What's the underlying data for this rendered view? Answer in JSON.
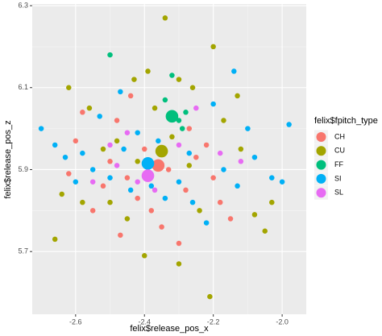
{
  "chart_data": {
    "type": "scatter",
    "x_label": "felix$release_pos_x",
    "y_label": "felix$release_pos_z",
    "legend_title": "felix$fpitch_type",
    "xlim": [
      -2.726,
      -1.93
    ],
    "ylim": [
      5.547,
      6.304
    ],
    "xticks": [
      -2.6,
      -2.4,
      -2.2,
      {
        "value": -2,
        "label": "-2.0"
      }
    ],
    "yticks": [
      5.7,
      5.9,
      6.1,
      6.3
    ],
    "grid": true,
    "legend": "right",
    "series": [
      {
        "name": "CH",
        "color": "#F8766D",
        "x": [
          -2.58,
          -2.6,
          -2.5,
          -2.45,
          -2.42,
          -2.38,
          -2.35,
          -2.3,
          -2.28,
          -2.25,
          -2.2,
          -2.18,
          -2.15,
          -2.52,
          -2.55,
          -2.48,
          -2.44,
          -2.4,
          -2.33,
          -2.27,
          -2.22,
          -2.62,
          -2.47,
          -2.36
        ],
        "values": [
          6.04,
          5.97,
          5.92,
          5.88,
          5.83,
          5.8,
          5.76,
          5.72,
          5.85,
          5.93,
          5.88,
          5.82,
          5.78,
          5.86,
          5.8,
          6.02,
          6.08,
          5.95,
          5.9,
          6.0,
          5.96,
          5.89,
          5.74,
          5.91
        ],
        "sizes": [
          2.5,
          2.5,
          2.5,
          2.5,
          2.5,
          2.5,
          2.5,
          2.5,
          2.5,
          2.5,
          2.5,
          2.5,
          2.5,
          2.5,
          2.5,
          2.5,
          2.5,
          2.5,
          2.5,
          2.5,
          2.5,
          2.5,
          2.5,
          6
        ]
      },
      {
        "name": "CU",
        "color": "#A3A500",
        "x": [
          -2.66,
          -2.62,
          -2.56,
          -2.52,
          -2.48,
          -2.43,
          -2.39,
          -2.34,
          -2.3,
          -2.26,
          -2.2,
          -2.17,
          -2.12,
          -2.08,
          -2.05,
          -2.03,
          -2.21,
          -2.3,
          -2.4,
          -2.45,
          -2.5,
          -2.58,
          -2.64,
          -2.27,
          -2.32,
          -2.37,
          -2.42,
          -2.13,
          -2.24,
          -2.35
        ],
        "values": [
          5.73,
          6.1,
          6.05,
          5.95,
          5.97,
          6.12,
          6.14,
          6.27,
          6.12,
          6.1,
          6.2,
          6.02,
          5.95,
          5.79,
          5.75,
          5.82,
          5.59,
          5.67,
          5.69,
          5.78,
          5.82,
          5.82,
          5.84,
          5.91,
          5.98,
          6.05,
          5.92,
          6.08,
          5.8,
          5.945
        ],
        "sizes": [
          2.5,
          2.5,
          2.5,
          2.5,
          2.5,
          2.5,
          2.5,
          2.5,
          2.5,
          2.5,
          2.5,
          2.5,
          2.5,
          2.5,
          2.5,
          2.5,
          2.5,
          2.5,
          2.5,
          2.5,
          2.5,
          2.5,
          2.5,
          2.5,
          2.5,
          2.5,
          2.5,
          2.5,
          2.5,
          6
        ]
      },
      {
        "name": "FF",
        "color": "#00BF7D",
        "x": [
          -2.32,
          -2.29,
          -2.34,
          -2.5,
          -2.28,
          -2.3,
          -2.32
        ],
        "values": [
          6.13,
          6.0,
          6.07,
          6.18,
          6.04,
          6.02,
          6.03
        ],
        "sizes": [
          2.5,
          2.5,
          2.5,
          2.5,
          2.5,
          2.5,
          6
        ]
      },
      {
        "name": "SI",
        "color": "#00B0F6",
        "x": [
          -2.7,
          -2.66,
          -2.63,
          -2.6,
          -2.55,
          -2.5,
          -2.46,
          -2.42,
          -2.38,
          -2.34,
          -2.3,
          -2.26,
          -2.22,
          -2.17,
          -2.13,
          -2.08,
          -2.03,
          -1.98,
          -2.0,
          -2.1,
          -2.2,
          -2.14,
          -2.47,
          -2.53,
          -2.58,
          -2.44,
          -2.36,
          -2.27,
          -2.39
        ],
        "values": [
          6.0,
          5.96,
          5.93,
          5.87,
          5.9,
          5.88,
          5.95,
          5.99,
          5.86,
          5.83,
          5.87,
          5.82,
          5.77,
          5.9,
          5.86,
          5.93,
          5.88,
          6.01,
          5.87,
          6.0,
          6.06,
          6.14,
          6.09,
          6.03,
          5.94,
          5.85,
          5.97,
          5.94,
          5.915
        ],
        "sizes": [
          2.5,
          2.5,
          2.5,
          2.5,
          2.5,
          2.5,
          2.5,
          2.5,
          2.5,
          2.5,
          2.5,
          2.5,
          2.5,
          2.5,
          2.5,
          2.5,
          2.5,
          2.5,
          2.5,
          2.5,
          2.5,
          2.5,
          2.5,
          2.5,
          2.5,
          2.5,
          2.5,
          2.5,
          6
        ]
      },
      {
        "name": "SL",
        "color": "#E76BF3",
        "x": [
          -2.55,
          -2.5,
          -2.45,
          -2.42,
          -2.37,
          -2.3,
          -2.25,
          -2.18,
          -2.12,
          -2.48,
          -2.39
        ],
        "values": [
          5.87,
          5.96,
          5.99,
          5.87,
          5.85,
          5.96,
          6.05,
          5.94,
          5.92,
          5.91,
          5.885
        ],
        "sizes": [
          2.5,
          2.5,
          2.5,
          2.5,
          2.5,
          2.5,
          2.5,
          2.5,
          2.5,
          2.5,
          6
        ]
      }
    ]
  }
}
